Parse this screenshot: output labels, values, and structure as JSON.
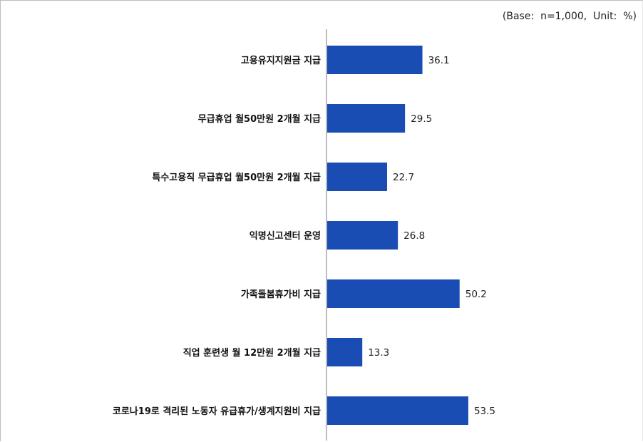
{
  "base_note": "(Base:  n=1,000,  Unit:  %)",
  "colors": {
    "bar": "#1a4db3",
    "axis": "#a6a6a6"
  },
  "chart_data": {
    "type": "bar",
    "orientation": "horizontal",
    "categories": [
      "고용유지지원금  지급",
      "무급휴업  월50만원  2개월  지급",
      "특수고용직  무급휴업  월50만원  2개월  지급",
      "익명신고센터  운영",
      "가족돌봄휴가비  지급",
      "직업  훈련생  월  12만원  2개월  지급",
      "코로나19로  격리된  노동자  유급휴가/생계지원비  지급"
    ],
    "values": [
      36.1,
      29.5,
      22.7,
      26.8,
      50.2,
      13.3,
      53.5
    ],
    "value_labels": [
      "36.1",
      "29.5",
      "22.7",
      "26.8",
      "50.2",
      "13.3",
      "53.5"
    ],
    "xlim": [
      0,
      100
    ],
    "grid": false,
    "legend": "none"
  }
}
